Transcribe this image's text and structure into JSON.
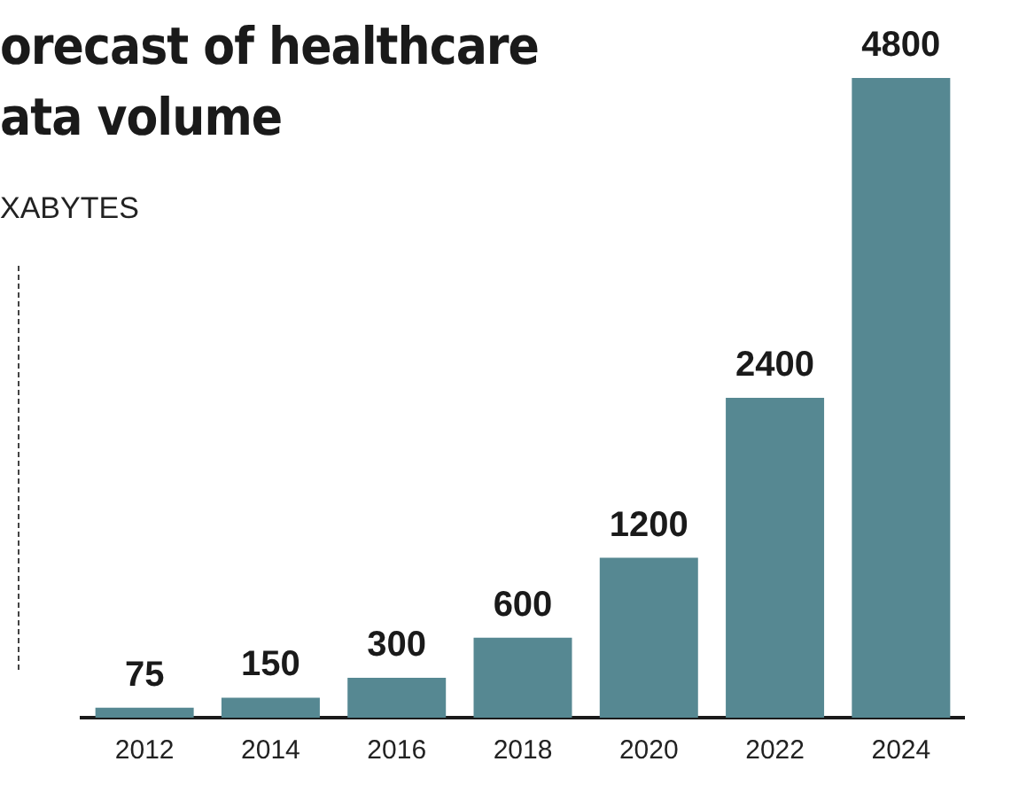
{
  "chart_data": {
    "type": "bar",
    "title": "orecast of healthcare\nata volume",
    "ylabel": "XABYTES",
    "categories": [
      "2012",
      "2014",
      "2016",
      "2018",
      "2020",
      "2022",
      "2024"
    ],
    "values": [
      75,
      150,
      300,
      600,
      1200,
      2400,
      4800
    ],
    "color": "#568892",
    "ylim": [
      0,
      4800
    ],
    "data_labels": true,
    "grid": false,
    "legend": false,
    "tick_labels": "x"
  }
}
